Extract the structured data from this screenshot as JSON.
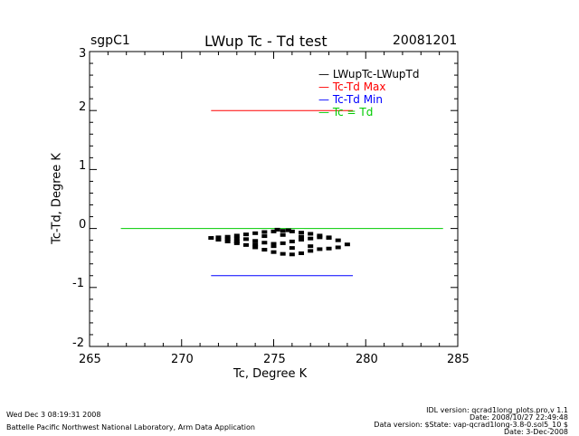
{
  "header": {
    "site": "sgpC1",
    "title": "LWup Tc - Td test",
    "date": "20081201"
  },
  "chart_data": {
    "type": "scatter",
    "title": "LWup Tc - Td test",
    "xlabel": "Tc, Degree K",
    "ylabel": "Tc-Td, Degree K",
    "xlim": [
      265,
      285
    ],
    "ylim": [
      -2,
      3
    ],
    "x_ticks": [
      "265",
      "270",
      "275",
      "280",
      "285"
    ],
    "y_ticks": [
      "-2",
      "-1",
      "0",
      "1",
      "2",
      "3"
    ],
    "legend": [
      {
        "label": "LWupTc-LWupTd",
        "color": "#000000"
      },
      {
        "label": "Tc-Td Max",
        "color": "#ff0000"
      },
      {
        "label": "Tc-Td Min",
        "color": "#0000ff"
      },
      {
        "label": "Tc = Td",
        "color": "#00cc00"
      }
    ],
    "series": [
      {
        "name": "Tc-Td Max",
        "color": "#ff0000",
        "x": [
          271.6,
          279.3
        ],
        "y": [
          2.0,
          2.0
        ]
      },
      {
        "name": "Tc-Td Min",
        "color": "#0000ff",
        "x": [
          271.6,
          279.3
        ],
        "y": [
          -0.8,
          -0.8
        ]
      },
      {
        "name": "Tc = Td",
        "color": "#00cc00",
        "x": [
          266.7,
          284.2
        ],
        "y": [
          0.0,
          0.0
        ]
      },
      {
        "name": "LWupTc-LWupTd",
        "color": "#000000",
        "type": "scatter",
        "x": [
          271.6,
          272.0,
          272.5,
          273.0,
          273.5,
          274.0,
          274.5,
          275.0,
          275.5,
          276.0,
          276.5,
          277.0,
          277.5,
          278.0,
          278.5,
          279.0,
          278.5,
          278.0,
          277.5,
          277.0,
          276.5,
          276.0,
          275.5,
          275.0,
          274.5,
          274.0,
          273.5,
          273.0,
          272.5,
          272.0,
          272.5,
          273.0,
          273.5,
          274.0,
          274.5,
          275.0,
          275.5,
          276.0,
          276.5,
          277.0,
          277.5,
          278.0,
          273.0,
          274.0,
          275.0,
          276.0,
          277.0,
          274.5,
          275.5,
          276.5,
          275.2,
          275.8
        ],
        "y": [
          -0.16,
          -0.15,
          -0.14,
          -0.12,
          -0.1,
          -0.08,
          -0.06,
          -0.05,
          -0.04,
          -0.05,
          -0.07,
          -0.09,
          -0.12,
          -0.15,
          -0.2,
          -0.27,
          -0.32,
          -0.34,
          -0.35,
          -0.38,
          -0.42,
          -0.44,
          -0.43,
          -0.4,
          -0.36,
          -0.32,
          -0.28,
          -0.25,
          -0.22,
          -0.19,
          -0.18,
          -0.17,
          -0.18,
          -0.21,
          -0.24,
          -0.26,
          -0.25,
          -0.22,
          -0.19,
          -0.17,
          -0.15,
          -0.16,
          -0.22,
          -0.27,
          -0.3,
          -0.33,
          -0.3,
          -0.13,
          -0.11,
          -0.14,
          -0.02,
          -0.03
        ]
      }
    ]
  },
  "footer": {
    "run_date": "Wed Dec  3 08:19:31 2008",
    "organization": "Battelle Pacific Northwest National Laboratory, Arm Data Application",
    "idl_version": "IDL version: qcrad1long_plots.pro,v 1.1",
    "code_date": "Date: 2008/10/27 22:49:48",
    "data_version": "Data version: $State: vap-qcrad1long-3.8-0.sol5_10 $",
    "data_date": "Date: 3-Dec-2008"
  }
}
